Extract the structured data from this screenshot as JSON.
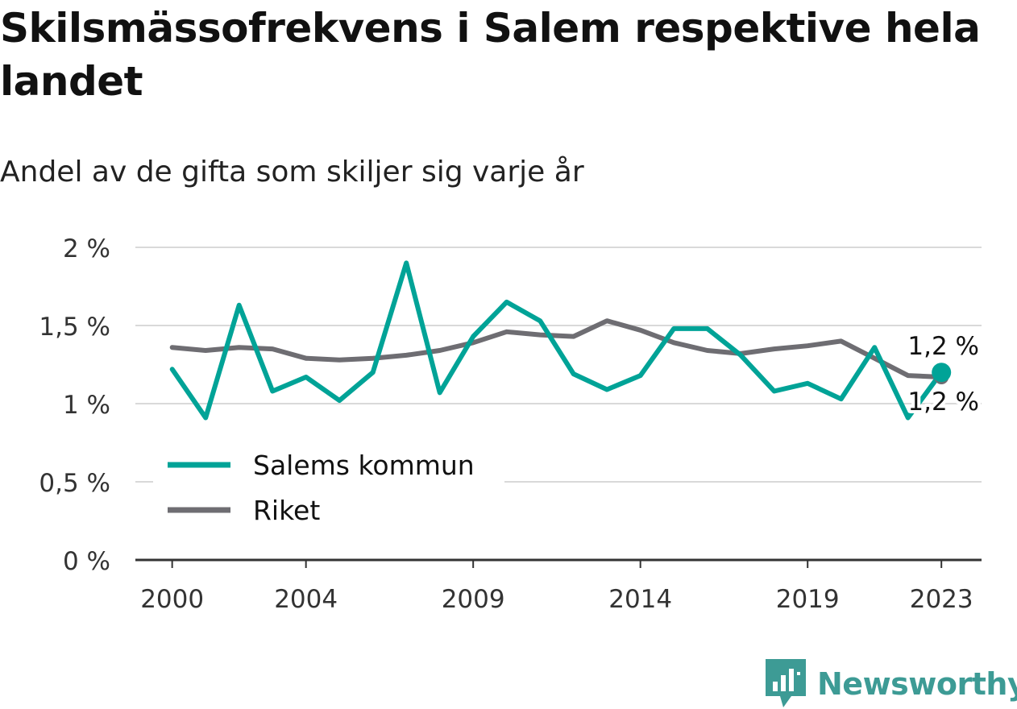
{
  "header": {
    "title": "Skilsmässofrekvens i Salem respektive hela landet",
    "subtitle": "Andel av de gifta som skiljer sig varje år"
  },
  "chart_data": {
    "type": "line",
    "title": "Skilsmässofrekvens i Salem respektive hela landet",
    "subtitle": "Andel av de gifta som skiljer sig varje år",
    "xlabel": "",
    "ylabel": "",
    "x": [
      2000,
      2001,
      2002,
      2003,
      2004,
      2005,
      2006,
      2007,
      2008,
      2009,
      2010,
      2011,
      2012,
      2013,
      2014,
      2015,
      2016,
      2017,
      2018,
      2019,
      2020,
      2021,
      2022,
      2023
    ],
    "x_tick_labels": [
      "2000",
      "2004",
      "2009",
      "2014",
      "2019",
      "2023"
    ],
    "x_ticks": [
      2000,
      2004,
      2009,
      2014,
      2019,
      2023
    ],
    "y_tick_labels": [
      "0 %",
      "0,5 %",
      "1 %",
      "1,5 %",
      "2 %"
    ],
    "y_ticks": [
      0,
      0.5,
      1,
      1.5,
      2
    ],
    "ylim": [
      0,
      2
    ],
    "xlim": [
      1998.9,
      2024.2
    ],
    "grid": "horizontal",
    "legend_position": "lower-left",
    "series": [
      {
        "name": "Salems kommun",
        "color": "#00a397",
        "values": [
          1.22,
          0.91,
          1.63,
          1.08,
          1.17,
          1.02,
          1.2,
          1.9,
          1.07,
          1.43,
          1.65,
          1.53,
          1.19,
          1.09,
          1.18,
          1.48,
          1.48,
          1.31,
          1.08,
          1.13,
          1.03,
          1.36,
          0.91,
          1.2
        ],
        "end_label": "1,2 %"
      },
      {
        "name": "Riket",
        "color": "#6e6d72",
        "values": [
          1.36,
          1.34,
          1.36,
          1.35,
          1.29,
          1.28,
          1.29,
          1.31,
          1.34,
          1.39,
          1.46,
          1.44,
          1.43,
          1.53,
          1.47,
          1.39,
          1.34,
          1.32,
          1.35,
          1.37,
          1.4,
          1.29,
          1.18,
          1.17
        ],
        "end_label": "1,2 %"
      }
    ]
  },
  "brand": {
    "name": "Newsworthy",
    "color": "#3d9b95",
    "icon": "bar-chart-icon"
  }
}
